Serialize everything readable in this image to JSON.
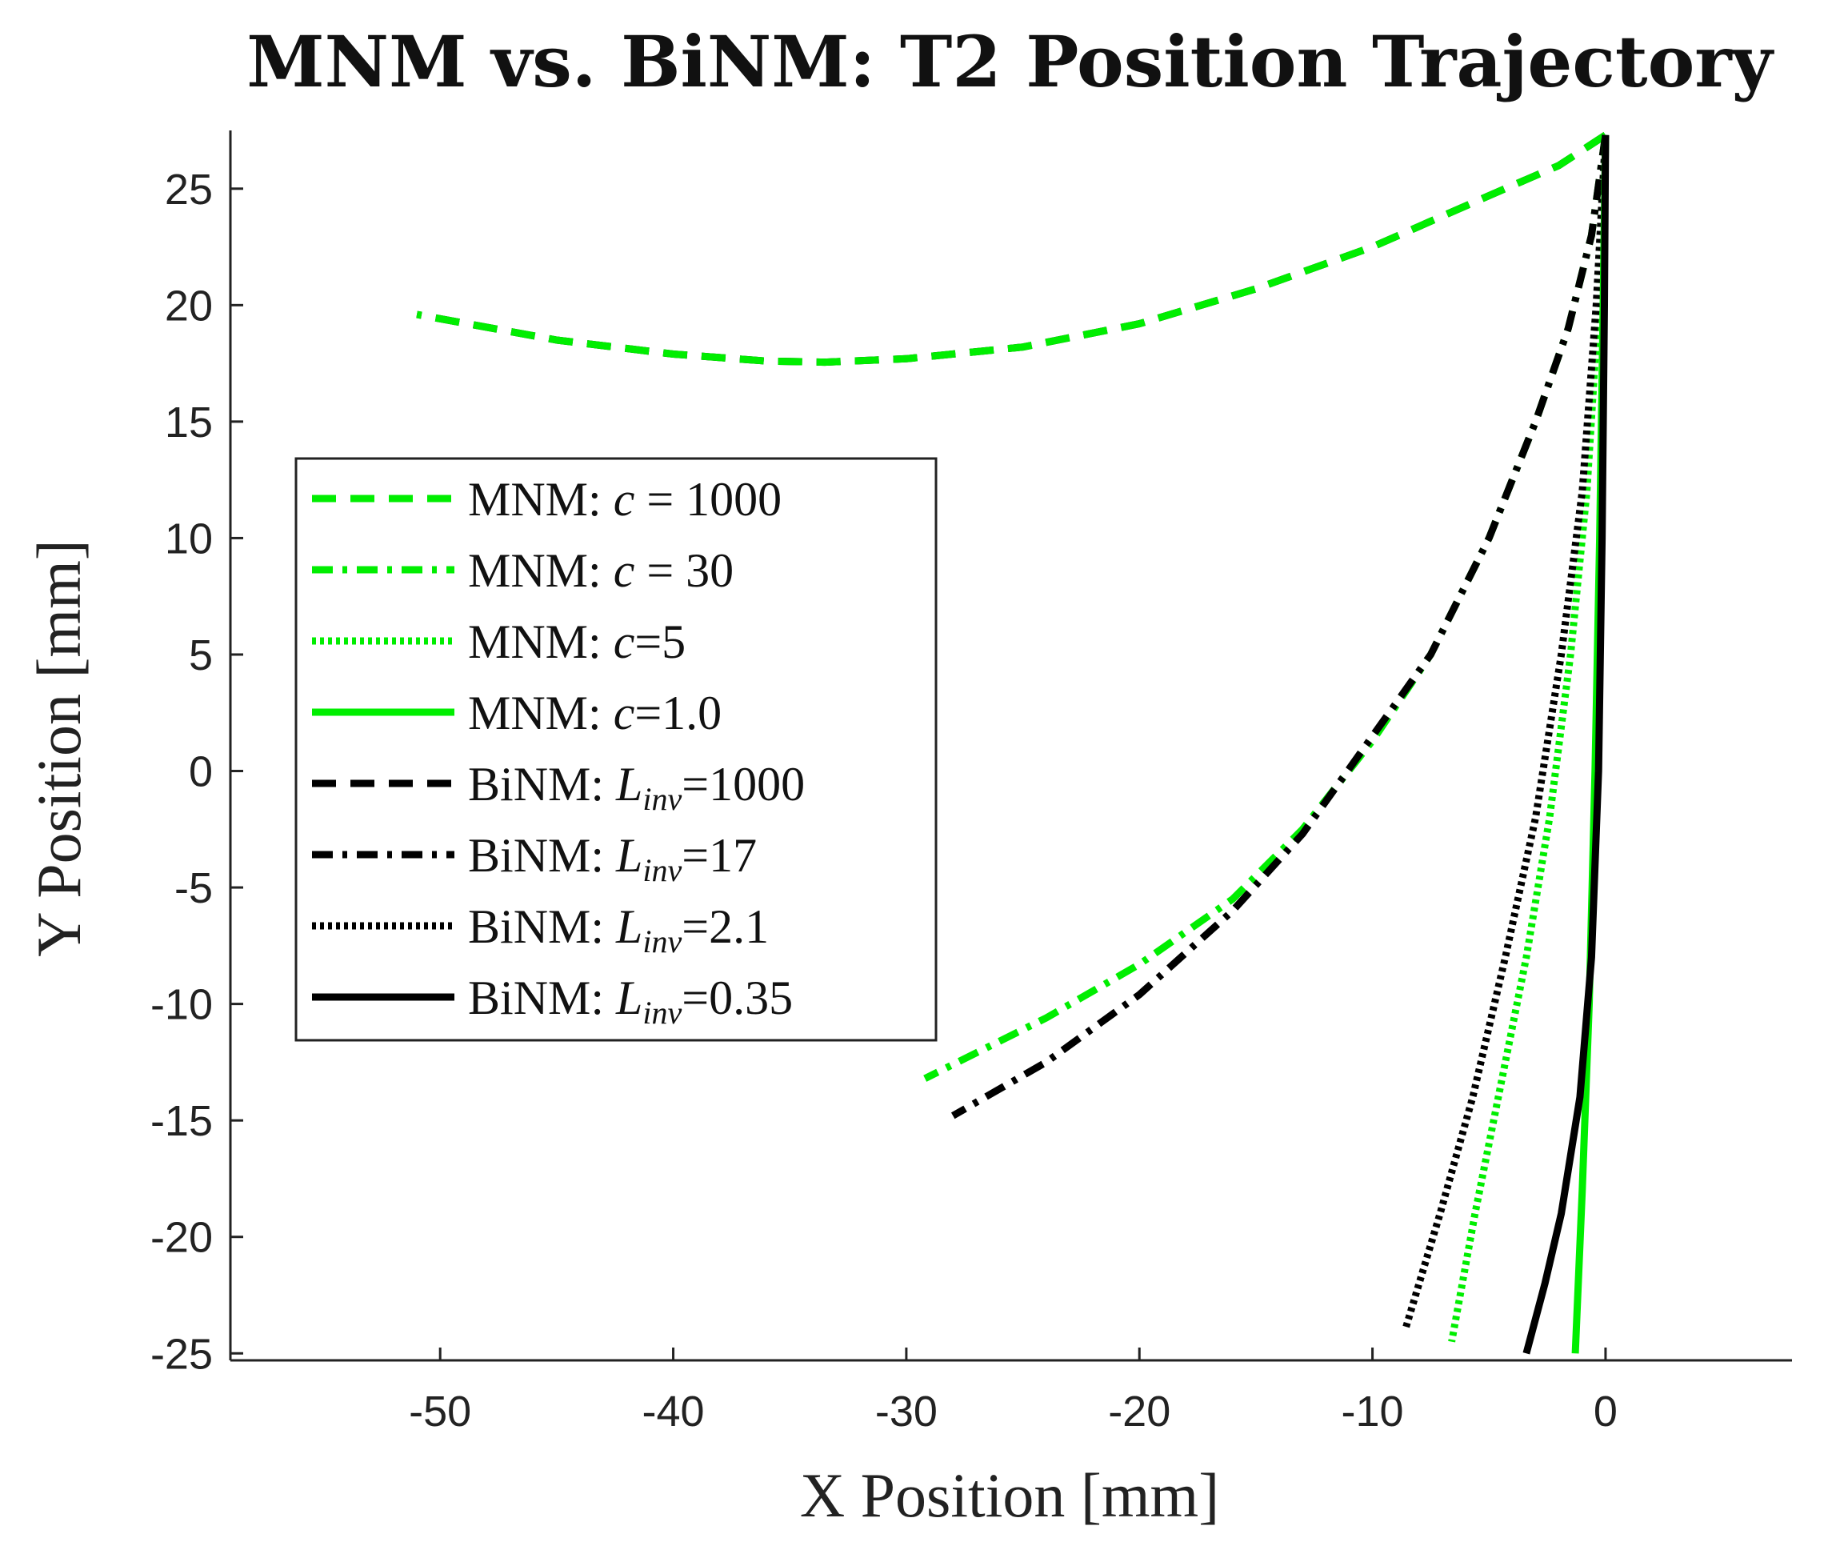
{
  "chart_data": {
    "type": "line",
    "title": "MNM vs. BiNM: T2 Position Trajectory",
    "xlabel": "X Position [mm]",
    "ylabel": "Y Position [mm]",
    "xlim": [
      -59,
      8
    ],
    "ylim": [
      -25.3,
      27.5
    ],
    "xticks": [
      -50,
      -40,
      -30,
      -20,
      -10,
      0
    ],
    "yticks": [
      -25,
      -20,
      -15,
      -10,
      -5,
      0,
      5,
      10,
      15,
      20,
      25
    ],
    "legend_position": "center-left",
    "colors": {
      "mnm": "#00ee00",
      "binm": "#000000"
    },
    "series": [
      {
        "name": "BiNM: L_inv=1000",
        "label_prefix": "BiNM: ",
        "label_var": "L",
        "label_sub": "inv",
        "label_rest": "=1000",
        "color": "#000000",
        "style": "dashed",
        "x": [
          0,
          -2,
          -5,
          -10,
          -15,
          -20,
          -25,
          -30,
          -33.5,
          -36,
          -40,
          -45,
          -51
        ],
        "y": [
          27.3,
          26.0,
          24.7,
          22.5,
          20.7,
          19.2,
          18.2,
          17.7,
          17.55,
          17.6,
          17.9,
          18.5,
          19.6
        ]
      },
      {
        "name": "MNM: c = 1000",
        "label_prefix": "MNM: ",
        "label_var": "c",
        "label_sub": "",
        "label_rest": " = 1000",
        "color": "#00ee00",
        "style": "dashed",
        "x": [
          0,
          -2,
          -5,
          -10,
          -15,
          -20,
          -25,
          -30,
          -33.5,
          -36,
          -40,
          -45,
          -51
        ],
        "y": [
          27.3,
          26.0,
          24.7,
          22.5,
          20.7,
          19.2,
          18.2,
          17.7,
          17.55,
          17.6,
          17.9,
          18.5,
          19.6
        ]
      },
      {
        "name": "MNM: c = 30",
        "label_prefix": "MNM: ",
        "label_var": "c",
        "label_sub": "",
        "label_rest": " = 30",
        "color": "#00ee00",
        "style": "dashdot",
        "x": [
          0,
          -0.6,
          -1.6,
          -3,
          -5,
          -7.5,
          -10,
          -13,
          -16,
          -20,
          -24,
          -29.2
        ],
        "y": [
          27.3,
          23,
          19,
          15,
          10,
          5,
          1.3,
          -2.5,
          -5.5,
          -8.3,
          -10.6,
          -13.2
        ]
      },
      {
        "name": "BiNM: L_inv=17",
        "label_prefix": "BiNM: ",
        "label_var": "L",
        "label_sub": "inv",
        "label_rest": "=17",
        "color": "#000000",
        "style": "dashdot",
        "x": [
          0,
          -0.6,
          -1.6,
          -3,
          -5,
          -7.5,
          -10,
          -13,
          -16,
          -20,
          -24,
          -28
        ],
        "y": [
          27.3,
          23,
          19,
          15,
          10,
          5,
          1.5,
          -2.7,
          -6.0,
          -9.6,
          -12.5,
          -14.8
        ]
      },
      {
        "name": "MNM: c=5",
        "label_prefix": "MNM: ",
        "label_var": "c",
        "label_sub": "",
        "label_rest": "=5",
        "color": "#00ee00",
        "style": "dotted",
        "x": [
          0,
          -0.3,
          -0.8,
          -1.5,
          -2.4,
          -3.4,
          -4.6,
          -5.6,
          -6.6
        ],
        "y": [
          27.3,
          20,
          12,
          5,
          -2,
          -8,
          -14,
          -19,
          -24.5
        ]
      },
      {
        "name": "BiNM: L_inv=2.1",
        "label_prefix": "BiNM: ",
        "label_var": "L",
        "label_sub": "inv",
        "label_rest": "=2.1",
        "color": "#000000",
        "style": "dotted",
        "x": [
          0,
          -0.4,
          -1.0,
          -1.9,
          -3.0,
          -4.3,
          -5.7,
          -7.1,
          -8.6
        ],
        "y": [
          27.3,
          20,
          12,
          5,
          -2,
          -8,
          -14,
          -19,
          -24
        ]
      },
      {
        "name": "MNM: c=1.0",
        "label_prefix": "MNM: ",
        "label_var": "c",
        "label_sub": "",
        "label_rest": "=1.0",
        "color": "#00ee00",
        "style": "solid",
        "x": [
          0,
          -0.1,
          -0.25,
          -0.45,
          -0.7,
          -1.0,
          -1.3
        ],
        "y": [
          27.3,
          20,
          10,
          0,
          -10,
          -18,
          -25
        ]
      },
      {
        "name": "BiNM: L_inv=0.35",
        "label_prefix": "BiNM: ",
        "label_var": "L",
        "label_sub": "inv",
        "label_rest": "=0.35",
        "color": "#000000",
        "style": "solid",
        "x": [
          0,
          -0.05,
          -0.15,
          -0.3,
          -0.6,
          -1.1,
          -1.9,
          -2.6,
          -3.4
        ],
        "y": [
          27.3,
          20,
          10,
          0,
          -8,
          -14,
          -19,
          -22,
          -25
        ]
      }
    ],
    "legend_order": [
      1,
      2,
      4,
      6,
      0,
      3,
      5,
      7
    ]
  }
}
